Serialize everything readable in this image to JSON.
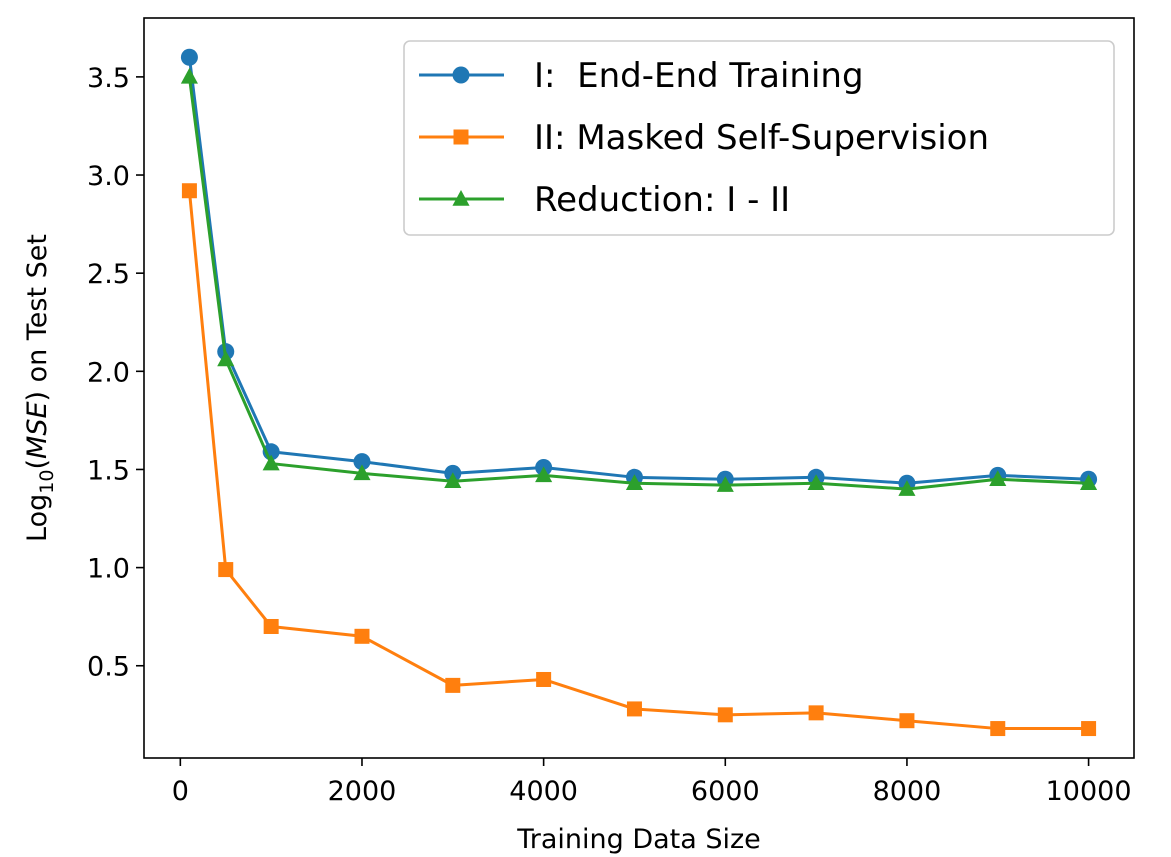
{
  "chart_data": {
    "type": "line",
    "title": "",
    "xlabel": "Training Data Size",
    "ylabel": {
      "prefix": "Log",
      "subscript": "10",
      "open": "(",
      "italic": "MSE",
      "rest": ") on Test Set"
    },
    "xlim": [
      -400,
      10500
    ],
    "ylim": [
      0.03,
      3.8
    ],
    "x_ticks": [
      0,
      2000,
      4000,
      6000,
      8000,
      10000
    ],
    "x_tick_labels": [
      "0",
      "2000",
      "4000",
      "6000",
      "8000",
      "10000"
    ],
    "y_ticks": [
      0.5,
      1.0,
      1.5,
      2.0,
      2.5,
      3.0,
      3.5
    ],
    "y_tick_labels": [
      "0.5",
      "1.0",
      "1.5",
      "2.0",
      "2.5",
      "3.0",
      "3.5"
    ],
    "grid": false,
    "legend_position": "top-right",
    "x": [
      100,
      500,
      1000,
      2000,
      3000,
      4000,
      5000,
      6000,
      7000,
      8000,
      9000,
      10000
    ],
    "series": [
      {
        "name": "I:  End-End Training",
        "color": "#1f77b4",
        "marker": "circle",
        "values": [
          3.6,
          2.1,
          1.59,
          1.54,
          1.48,
          1.51,
          1.46,
          1.45,
          1.46,
          1.43,
          1.47,
          1.45
        ]
      },
      {
        "name": "II: Masked Self-Supervision",
        "color": "#ff7f0e",
        "marker": "square",
        "values": [
          2.92,
          0.99,
          0.7,
          0.65,
          0.4,
          0.43,
          0.28,
          0.25,
          0.26,
          0.22,
          0.18,
          0.18
        ]
      },
      {
        "name": "Reduction: I - II",
        "color": "#2ca02c",
        "marker": "triangle",
        "values": [
          3.5,
          2.06,
          1.53,
          1.48,
          1.44,
          1.47,
          1.43,
          1.42,
          1.43,
          1.4,
          1.45,
          1.43
        ]
      }
    ]
  }
}
